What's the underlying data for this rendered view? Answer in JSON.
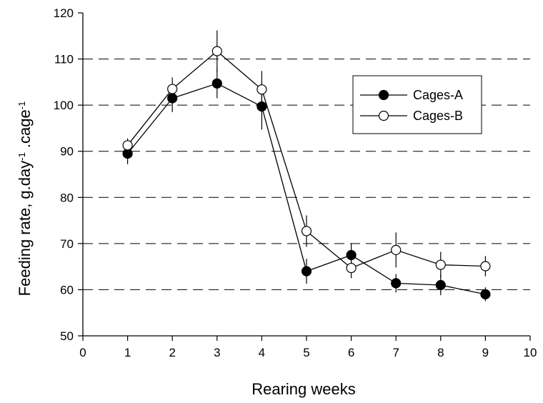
{
  "chart_data": {
    "type": "line",
    "xlabel": "Rearing weeks",
    "ylabel_main": "Feeding rate, g.day",
    "ylabel_sup1": "-1",
    "ylabel_mid": " .cage",
    "ylabel_sup2": "-1",
    "xlim": [
      0,
      10
    ],
    "ylim": [
      50,
      120
    ],
    "x_ticks": [
      "0",
      "1",
      "2",
      "3",
      "4",
      "5",
      "6",
      "7",
      "8",
      "9",
      "10"
    ],
    "y_ticks": [
      "50",
      "60",
      "70",
      "80",
      "90",
      "100",
      "110",
      "120"
    ],
    "gridlines_y": [
      60,
      70,
      80,
      90,
      100,
      110
    ],
    "grid_style": "dashed horizontal",
    "legend_position": "top-right",
    "series": [
      {
        "name": "Cages-A",
        "marker": "filled-circle",
        "color": "#000000",
        "x": [
          1,
          2,
          3,
          4,
          5,
          6,
          7,
          8,
          9
        ],
        "y": [
          89.5,
          101.5,
          104.7,
          99.7,
          64.0,
          67.5,
          61.4,
          61.0,
          59.0
        ],
        "err": [
          2.3,
          3.0,
          3.2,
          5.0,
          2.7,
          2.5,
          2.0,
          2.2,
          1.5
        ]
      },
      {
        "name": "Cages-B",
        "marker": "open-circle",
        "color": "#000000",
        "x": [
          1,
          2,
          3,
          4,
          5,
          6,
          7,
          8,
          9
        ],
        "y": [
          91.3,
          103.5,
          111.7,
          103.4,
          72.7,
          64.7,
          68.6,
          65.4,
          65.1
        ],
        "err": [
          1.5,
          2.5,
          4.5,
          4.0,
          3.4,
          2.2,
          3.8,
          2.8,
          2.2
        ]
      }
    ]
  }
}
